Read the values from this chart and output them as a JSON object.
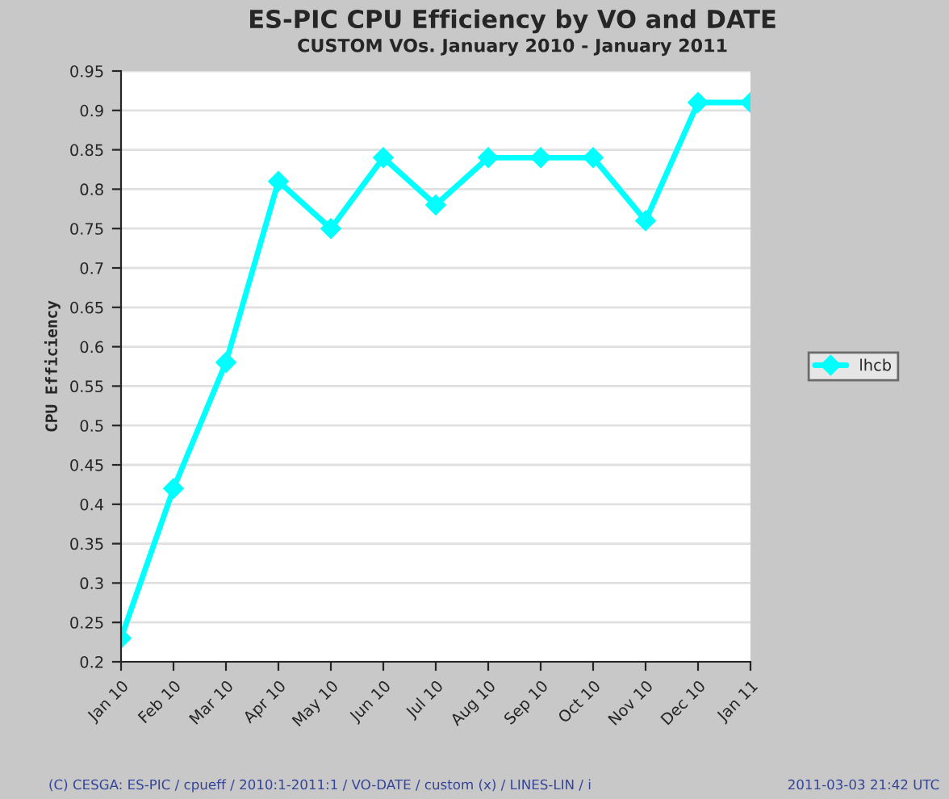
{
  "chart_data": {
    "type": "line",
    "title": "ES-PIC CPU Efficiency by VO and DATE",
    "subtitle": "CUSTOM VOs. January 2010 - January 2011",
    "ylabel": "CPU Efficiency",
    "categories": [
      "Jan 10",
      "Feb 10",
      "Mar 10",
      "Apr 10",
      "May 10",
      "Jun 10",
      "Jul 10",
      "Aug 10",
      "Sep 10",
      "Oct 10",
      "Nov 10",
      "Dec 10",
      "Jan 11"
    ],
    "series": [
      {
        "name": "lhcb",
        "color": "#00ffff",
        "values": [
          0.23,
          0.42,
          0.58,
          0.81,
          0.75,
          0.84,
          0.78,
          0.84,
          0.84,
          0.84,
          0.76,
          0.91,
          0.91
        ]
      }
    ],
    "ylim": [
      0.2,
      0.95
    ],
    "yticks": [
      0.2,
      0.25,
      0.3,
      0.35,
      0.4,
      0.45,
      0.5,
      0.55,
      0.6,
      0.65,
      0.7,
      0.75,
      0.8,
      0.85,
      0.9,
      0.95
    ],
    "grid": "y",
    "legend": "right",
    "marker": "diamond",
    "line_style": "solid",
    "annotations": [
      "(C) CESGA: ES-PIC / cpueff / 2010:1-2011:1 / VO-DATE / custom (x) / LINES-LIN / i",
      "2011-03-03 21:42 UTC"
    ]
  }
}
